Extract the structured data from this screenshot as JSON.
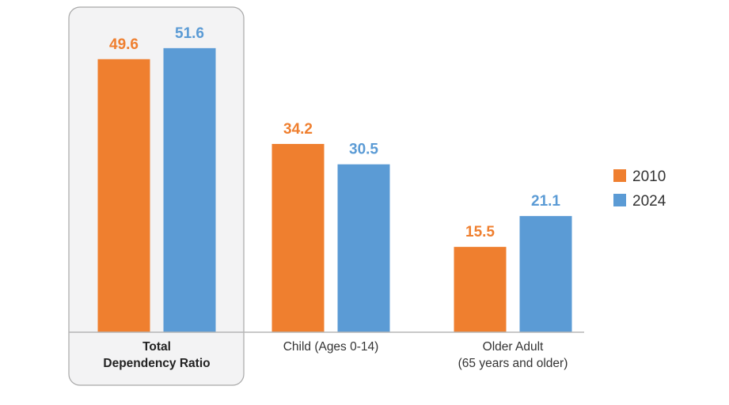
{
  "chart_data": {
    "type": "bar",
    "categories": [
      {
        "lines": [
          "Total",
          "Dependency Ratio"
        ],
        "highlighted": true
      },
      {
        "lines": [
          "Child (Ages 0-14)"
        ],
        "highlighted": false
      },
      {
        "lines": [
          "Older Adult",
          "(65 years and older)"
        ],
        "highlighted": false
      }
    ],
    "series": [
      {
        "name": "2010",
        "values": [
          49.6,
          34.2,
          15.5
        ],
        "color": "#ef7f2f"
      },
      {
        "name": "2024",
        "values": [
          51.6,
          30.5,
          21.1
        ],
        "color": "#5b9bd5"
      }
    ],
    "value_labels": [
      [
        "49.6",
        "34.2",
        "15.5"
      ],
      [
        "51.6",
        "30.5",
        "21.1"
      ]
    ],
    "title": "",
    "xlabel": "",
    "ylabel": "",
    "ylim": [
      0,
      60
    ],
    "grid": false,
    "legend_position": "right",
    "highlight_color": "#f3f3f4"
  }
}
